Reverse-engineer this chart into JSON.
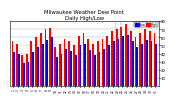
{
  "title": "Milwaukee Weather Dew Point",
  "subtitle": "Daily High/Low",
  "title_fontsize": 3.8,
  "background_color": "#ffffff",
  "plot_bg_color": "#ffffff",
  "high_color": "#ff0000",
  "low_color": "#0000ff",
  "legend_high": "High",
  "legend_low": "Low",
  "days": [
    "1",
    "2",
    "3",
    "4",
    "5",
    "6",
    "7",
    "8",
    "9",
    "10",
    "11",
    "12",
    "13",
    "14",
    "15",
    "16",
    "17",
    "18",
    "19",
    "20",
    "21",
    "22",
    "23",
    "24",
    "25",
    "26",
    "27",
    "28",
    "29",
    "30",
    "31"
  ],
  "highs": [
    55,
    52,
    38,
    40,
    55,
    60,
    65,
    70,
    72,
    48,
    52,
    58,
    56,
    50,
    62,
    65,
    58,
    52,
    55,
    58,
    62,
    68,
    70,
    73,
    76,
    68,
    60,
    65,
    70,
    68,
    65
  ],
  "lows": [
    42,
    40,
    28,
    30,
    42,
    48,
    52,
    57,
    60,
    36,
    40,
    45,
    43,
    38,
    50,
    52,
    44,
    38,
    42,
    46,
    50,
    55,
    58,
    61,
    63,
    55,
    48,
    52,
    57,
    55,
    52
  ],
  "ylim": [
    0,
    80
  ],
  "ytick_vals": [
    10,
    20,
    30,
    40,
    50,
    60,
    70,
    80
  ],
  "ytick_labels": [
    "10",
    "20",
    "30",
    "40",
    "50",
    "60",
    "70",
    "80"
  ],
  "bar_width": 0.38,
  "dashed_cols": [
    22,
    23
  ]
}
